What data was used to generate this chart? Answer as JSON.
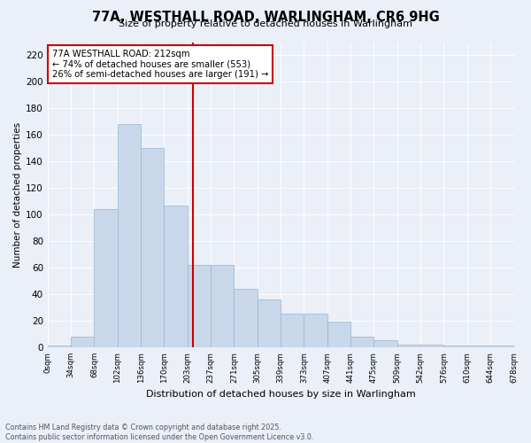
{
  "title": "77A, WESTHALL ROAD, WARLINGHAM, CR6 9HG",
  "subtitle": "Size of property relative to detached houses in Warlingham",
  "xlabel": "Distribution of detached houses by size in Warlingham",
  "ylabel": "Number of detached properties",
  "heights": [
    1,
    8,
    104,
    168,
    150,
    107,
    62,
    62,
    44,
    36,
    25,
    25,
    19,
    8,
    5,
    2,
    2,
    1,
    1,
    1
  ],
  "bin_labels": [
    "0sqm",
    "34sqm",
    "68sqm",
    "102sqm",
    "136sqm",
    "170sqm",
    "203sqm",
    "237sqm",
    "271sqm",
    "305sqm",
    "339sqm",
    "373sqm",
    "407sqm",
    "441sqm",
    "475sqm",
    "509sqm",
    "542sqm",
    "576sqm",
    "610sqm",
    "644sqm",
    "678sqm"
  ],
  "bar_color": "#c8d8ea",
  "bar_edge_color": "#9ab4cc",
  "vline_color": "#cc0000",
  "vline_x": 212,
  "annotation_title": "77A WESTHALL ROAD: 212sqm",
  "annotation_line1": "← 74% of detached houses are smaller (553)",
  "annotation_line2": "26% of semi-detached houses are larger (191) →",
  "ylim": [
    0,
    230
  ],
  "yticks": [
    0,
    20,
    40,
    60,
    80,
    100,
    120,
    140,
    160,
    180,
    200,
    220
  ],
  "footer1": "Contains HM Land Registry data © Crown copyright and database right 2025.",
  "footer2": "Contains public sector information licensed under the Open Government Licence v3.0.",
  "bg_color": "#eaeff8",
  "grid_color": "#ffffff",
  "bin_width": 34
}
